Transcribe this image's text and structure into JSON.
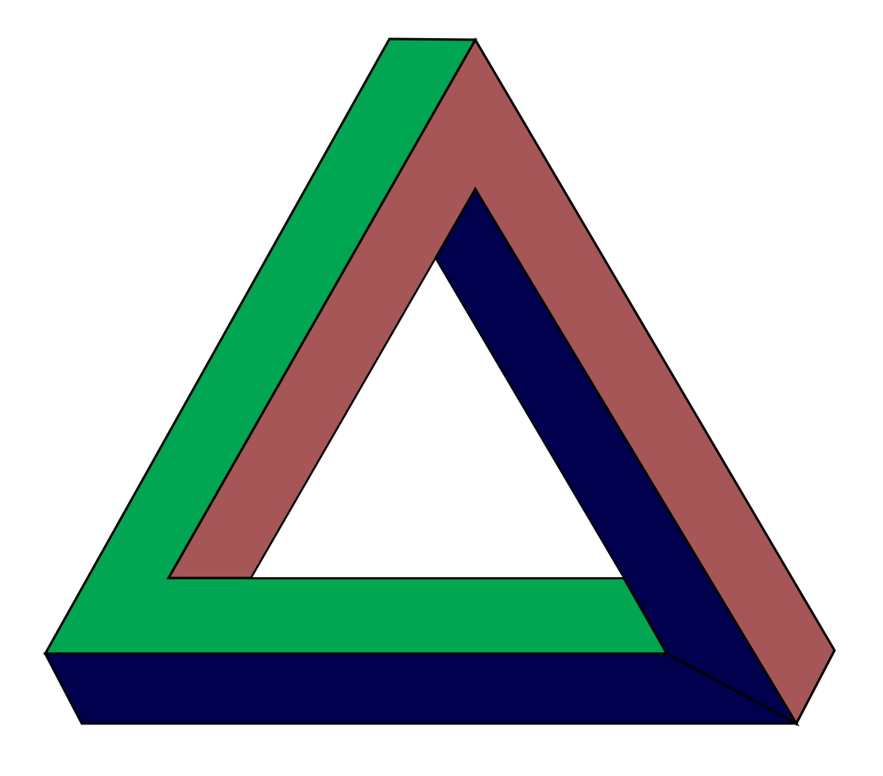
{
  "figure": {
    "background_color": "#ffffff",
    "outline_color": "#000000",
    "faces": {
      "green": "#00a651",
      "rose": "#a65656",
      "navy": "#00004f"
    }
  }
}
